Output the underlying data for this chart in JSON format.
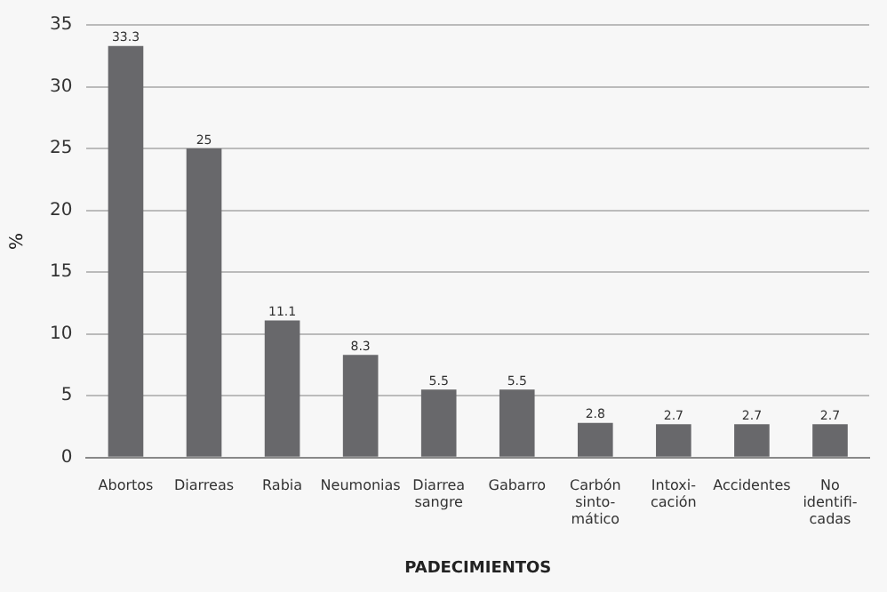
{
  "chart_data": {
    "type": "bar",
    "xlabel": "PADECIMIENTOS",
    "ylabel": "%",
    "categories": [
      "Abortos",
      "Diarreas",
      "Rabia",
      "Neumonias",
      "Diarrea\nsangre",
      "Gabarro",
      "Carbón\nsinto-\nmático",
      "Intoxi-\ncación",
      "Accidentes",
      "No\nidentifi-\ncadas"
    ],
    "values": [
      33.3,
      25,
      11.1,
      8.3,
      5.5,
      5.5,
      2.8,
      2.7,
      2.7,
      2.7
    ],
    "color": "#68686b",
    "ylim": [
      0,
      35
    ],
    "yticks": [
      0,
      5,
      10,
      15,
      20,
      25,
      30,
      35
    ],
    "grid": "y",
    "data_labels": true,
    "legend": false
  }
}
